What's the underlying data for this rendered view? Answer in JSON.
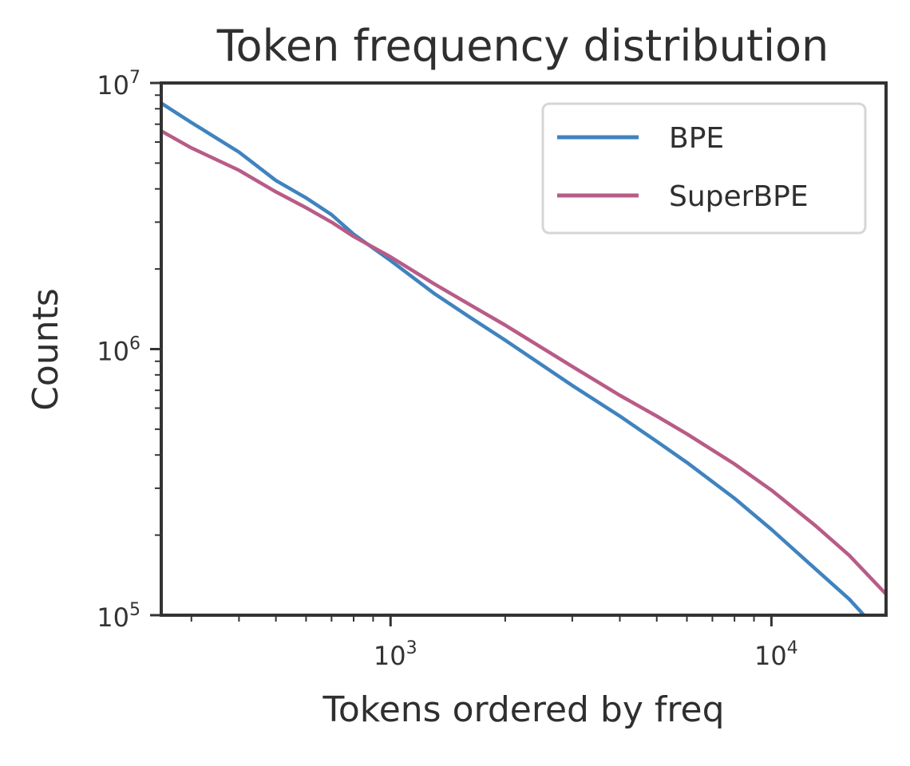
{
  "chart_data": {
    "type": "line",
    "title": "Token frequency distribution",
    "xlabel": "Tokens ordered by freq",
    "ylabel": "Counts",
    "xscale": "log",
    "yscale": "log",
    "xlim": [
      250,
      20000
    ],
    "ylim": [
      100000,
      10000000
    ],
    "x_major_ticks": [
      {
        "base": "10",
        "exp": "3",
        "value": 1000
      },
      {
        "base": "10",
        "exp": "4",
        "value": 10000
      }
    ],
    "y_major_ticks": [
      {
        "base": "10",
        "exp": "5",
        "value": 100000
      },
      {
        "base": "10",
        "exp": "6",
        "value": 1000000
      },
      {
        "base": "10",
        "exp": "7",
        "value": 10000000
      }
    ],
    "grid": false,
    "legend_position": "top-right",
    "series": [
      {
        "name": "BPE",
        "color": "#3f83bf",
        "x": [
          250,
          300,
          400,
          500,
          600,
          700,
          800,
          1000,
          1300,
          1600,
          2000,
          3000,
          4000,
          5000,
          6000,
          8000,
          10000,
          13000,
          16000,
          17500
        ],
        "y": [
          8400000,
          7100000,
          5500000,
          4300000,
          3700000,
          3200000,
          2700000,
          2150000,
          1620000,
          1330000,
          1080000,
          730000,
          560000,
          450000,
          375000,
          275000,
          210000,
          150000,
          115000,
          100000
        ]
      },
      {
        "name": "SuperBPE",
        "color": "#b85c86",
        "x": [
          250,
          300,
          400,
          500,
          600,
          700,
          800,
          1000,
          1300,
          1600,
          2000,
          3000,
          4000,
          5000,
          6000,
          8000,
          10000,
          13000,
          16000,
          20000
        ],
        "y": [
          6600000,
          5700000,
          4700000,
          3900000,
          3400000,
          3000000,
          2650000,
          2220000,
          1760000,
          1480000,
          1230000,
          860000,
          670000,
          560000,
          480000,
          370000,
          295000,
          218000,
          168000,
          120000
        ]
      }
    ]
  }
}
